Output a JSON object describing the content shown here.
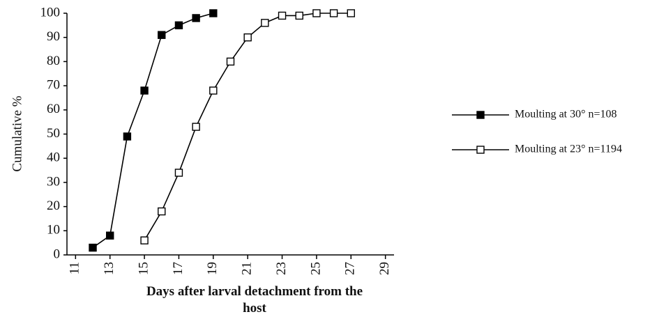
{
  "chart_data": {
    "type": "line",
    "xlabel": "Days after larval detachment from the host",
    "ylabel": "Cumulative %",
    "xlim": [
      10.5,
      29.5
    ],
    "xticks": [
      11,
      13,
      15,
      17,
      19,
      21,
      23,
      25,
      27,
      29
    ],
    "ylim": [
      0,
      100
    ],
    "yticks": [
      0,
      10,
      20,
      30,
      40,
      50,
      60,
      70,
      80,
      90,
      100
    ],
    "grid": false,
    "legend": "right",
    "series": [
      {
        "name": "Moulting at 30°  n=108",
        "color": "#000000",
        "marker": "filled",
        "x": [
          12,
          13,
          14,
          15,
          16,
          17,
          18,
          19
        ],
        "values": [
          3,
          8,
          49,
          68,
          91,
          95,
          98,
          100
        ]
      },
      {
        "name": "Moulting at 23° n=1194",
        "color": "#000000",
        "marker": "open",
        "x": [
          15,
          16,
          17,
          18,
          19,
          20,
          21,
          22,
          23,
          24,
          25,
          26,
          27
        ],
        "values": [
          6,
          18,
          34,
          53,
          68,
          80,
          90,
          96,
          99,
          99,
          100,
          100,
          100
        ]
      }
    ]
  }
}
